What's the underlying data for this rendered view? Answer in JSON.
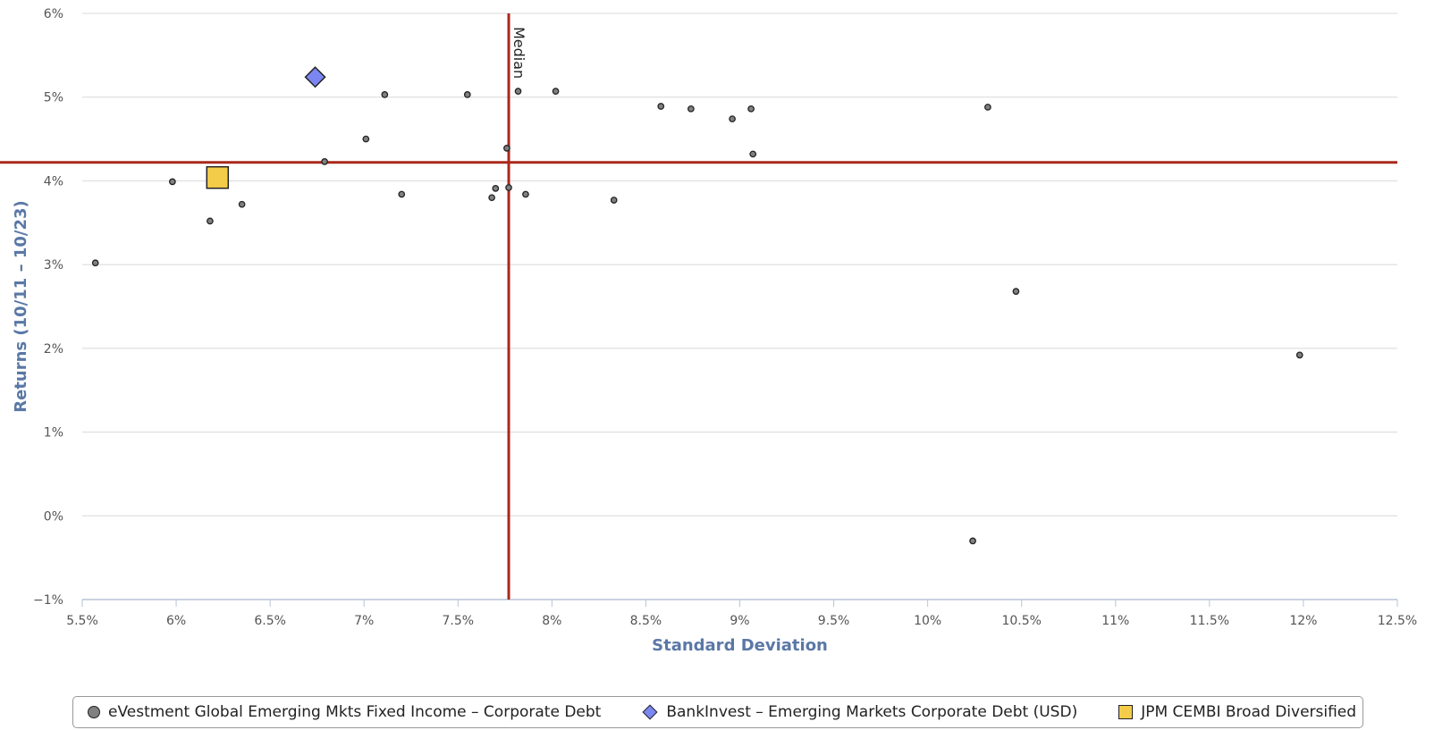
{
  "chart_data": {
    "type": "scatter",
    "xlabel": "Standard Deviation",
    "ylabel": "Returns (10/11 – 10/23)",
    "xlim": [
      5.5,
      12.5
    ],
    "ylim": [
      -1,
      6
    ],
    "x_ticks": [
      5.5,
      6,
      6.5,
      7,
      7.5,
      8,
      8.5,
      9,
      9.5,
      10,
      10.5,
      11,
      11.5,
      12,
      12.5
    ],
    "x_tick_labels": [
      "5.5%",
      "6%",
      "6.5%",
      "7%",
      "7.5%",
      "8%",
      "8.5%",
      "9%",
      "9.5%",
      "10%",
      "10.5%",
      "11%",
      "11.5%",
      "12%",
      "12.5%"
    ],
    "y_ticks": [
      -1,
      0,
      1,
      2,
      3,
      4,
      5,
      6
    ],
    "y_tick_labels": [
      "−1%",
      "0%",
      "1%",
      "2%",
      "3%",
      "4%",
      "5%",
      "6%"
    ],
    "grid": "horizontal",
    "legend_position": "bottom",
    "median_lines": {
      "x": 7.77,
      "y": 4.22,
      "label": "Median",
      "color": "#a8291c"
    },
    "series": [
      {
        "name": "eVestment Global Emerging Mkts Fixed Income – Corporate Debt",
        "marker": "circle",
        "color": "#808080",
        "points": [
          [
            5.57,
            3.02
          ],
          [
            5.98,
            3.99
          ],
          [
            6.18,
            3.52
          ],
          [
            6.35,
            3.72
          ],
          [
            6.79,
            4.23
          ],
          [
            7.01,
            4.5
          ],
          [
            7.11,
            5.03
          ],
          [
            7.2,
            3.84
          ],
          [
            7.55,
            5.03
          ],
          [
            7.68,
            3.8
          ],
          [
            7.7,
            3.91
          ],
          [
            7.76,
            4.39
          ],
          [
            7.77,
            3.92
          ],
          [
            7.82,
            5.07
          ],
          [
            7.86,
            3.84
          ],
          [
            8.02,
            5.07
          ],
          [
            8.33,
            3.77
          ],
          [
            8.58,
            4.89
          ],
          [
            8.74,
            4.86
          ],
          [
            8.96,
            4.74
          ],
          [
            9.06,
            4.86
          ],
          [
            9.07,
            4.32
          ],
          [
            10.24,
            -0.3
          ],
          [
            10.32,
            4.88
          ],
          [
            10.47,
            2.68
          ],
          [
            11.98,
            1.92
          ]
        ]
      },
      {
        "name": "BankInvest – Emerging Markets Corporate Debt (USD)",
        "marker": "diamond",
        "color": "#7b86f0",
        "points": [
          [
            6.74,
            5.24
          ]
        ]
      },
      {
        "name": "JPM CEMBI Broad Diversified",
        "marker": "square",
        "color": "#f3cc4a",
        "points": [
          [
            6.22,
            4.04
          ]
        ]
      }
    ]
  }
}
